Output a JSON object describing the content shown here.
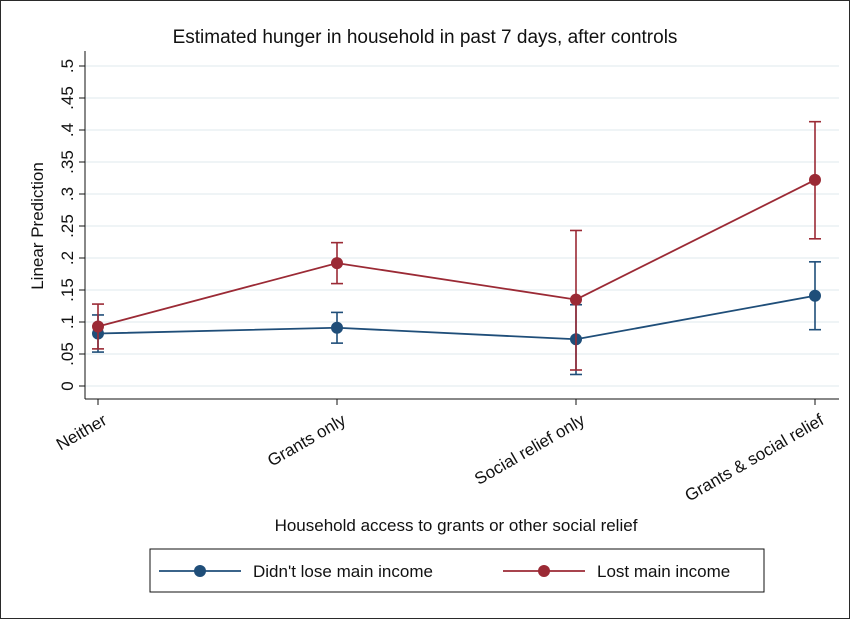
{
  "chart_data": {
    "type": "line",
    "title": "Estimated hunger in household in past 7 days, after controls",
    "xlabel": "Household access to grants or other social relief",
    "ylabel": "Linear Prediction",
    "categories": [
      "Neither",
      "Grants only",
      "Social relief only",
      "Grants & social relief"
    ],
    "ylim": [
      0,
      0.5
    ],
    "yticks": [
      0,
      0.05,
      0.1,
      0.15,
      0.2,
      0.25,
      0.3,
      0.35,
      0.4,
      0.45,
      0.5
    ],
    "ytick_labels": [
      "0",
      ".05",
      ".1",
      ".15",
      ".2",
      ".25",
      ".3",
      ".35",
      ".4",
      ".45",
      ".5"
    ],
    "grid": true,
    "legend_position": "bottom",
    "series": [
      {
        "name": "Didn't lose main income",
        "color": "#1f4e79",
        "values": [
          0.082,
          0.091,
          0.073,
          0.141
        ],
        "ci_low": [
          0.053,
          0.067,
          0.018,
          0.088
        ],
        "ci_high": [
          0.111,
          0.115,
          0.127,
          0.194
        ]
      },
      {
        "name": "Lost main income",
        "color": "#9b2a35",
        "values": [
          0.093,
          0.192,
          0.135,
          0.322
        ],
        "ci_low": [
          0.058,
          0.16,
          0.025,
          0.23
        ],
        "ci_high": [
          0.128,
          0.224,
          0.243,
          0.413
        ]
      }
    ]
  }
}
